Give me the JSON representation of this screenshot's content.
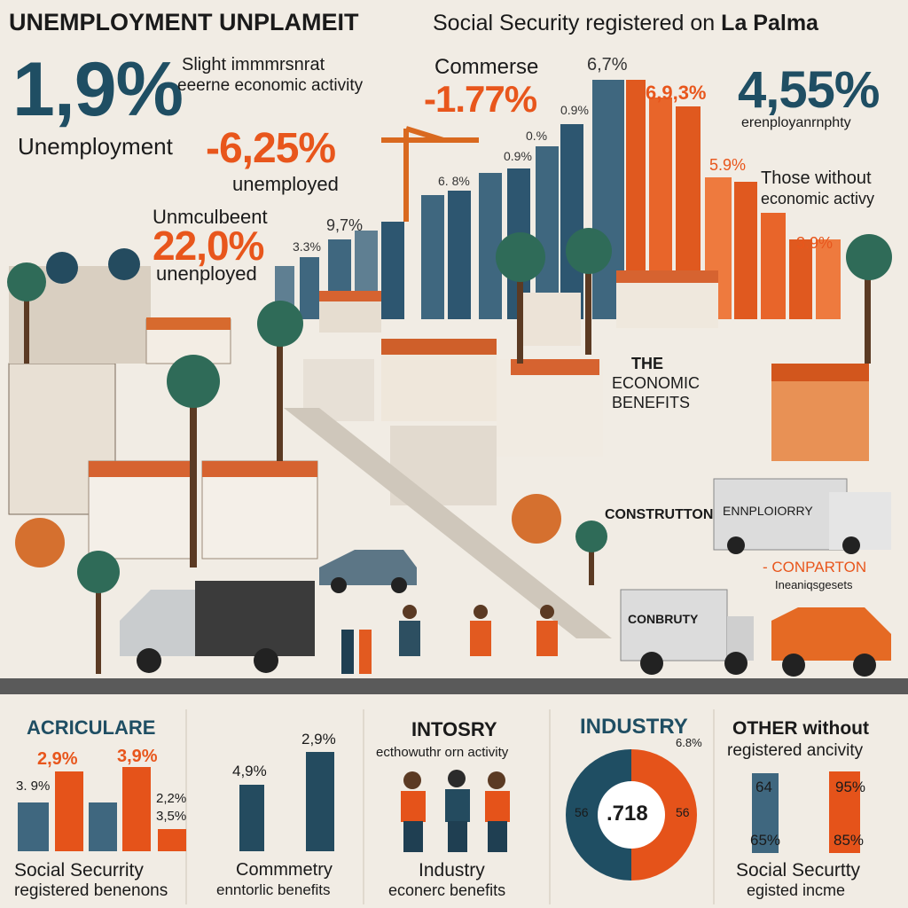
{
  "header": {
    "title_left": "UNEMPLOYMENT UNPLAMEIT",
    "title_right_prefix": "Social Security registered on",
    "title_right_place": "La Palma"
  },
  "top_left": {
    "big_stat": "1,9%",
    "big_stat_label": "Unemployment",
    "note_line1": "Slight immmrsnrat",
    "note_line2": "eeerne economic activity",
    "stat2": "-6,25%",
    "stat2_label": "unemployed",
    "unmc_label": "Unmculbeent",
    "stat3": "22,0%",
    "stat3_label": "unenployed"
  },
  "center_top": {
    "commerce_label": "Commerse",
    "commerce_value": "-1.77%",
    "bar_labels": [
      "6,7%",
      "6,9,3%",
      "0.9%",
      "0.%",
      "0.9%",
      "6. 8%",
      "9,7%",
      "3.3%",
      "5.9%",
      "3.9%"
    ]
  },
  "top_right": {
    "big_stat": "4,55%",
    "big_stat_label": "erenployanrnphty",
    "note_line1": "Those without",
    "note_line2": "economic activy"
  },
  "scene_signs": {
    "economic_benefits_1": "THE",
    "economic_benefits_2": "ECONOMIC",
    "economic_benefits_3": "BENEFITS",
    "construction": "CONSTRUTTON",
    "employment_sign": "ENNPLOIORRY",
    "conbrity": "CONBRUTY",
    "comparon_1": "- CONPARTON",
    "comparon_2": "Ineaniqsgesets"
  },
  "bottom": {
    "p1": {
      "title": "ACRICULARE",
      "labels": [
        "2,9%",
        "3,9%",
        "3. 9%",
        "2,2%",
        "3,5%"
      ],
      "caption_1": "Social Securrity",
      "caption_2": "registered benenons"
    },
    "p2": {
      "labels": [
        "4,9%",
        "2,9%"
      ],
      "caption_1": "Commmetry",
      "caption_2": "enntorlic benefits"
    },
    "p3": {
      "title": "INTOSRY",
      "subtitle": "ecthowuthr orn activity",
      "caption_1": "Industry",
      "caption_2": "econerc benefits"
    },
    "p4": {
      "title": "INDUSTRY",
      "tag": "6.8%",
      "center": ".718",
      "left": "56",
      "right": "56"
    },
    "p5": {
      "title_1": "OTHER without",
      "title_2": "registered ancivity",
      "labels": [
        "64",
        "95%",
        "65%",
        "85%"
      ],
      "caption_1": "Social Securtty",
      "caption_2": "egisted incme"
    }
  },
  "colors": {
    "navy": "#1f4e63",
    "orange": "#e8561c",
    "bg": "#f1ece4"
  }
}
